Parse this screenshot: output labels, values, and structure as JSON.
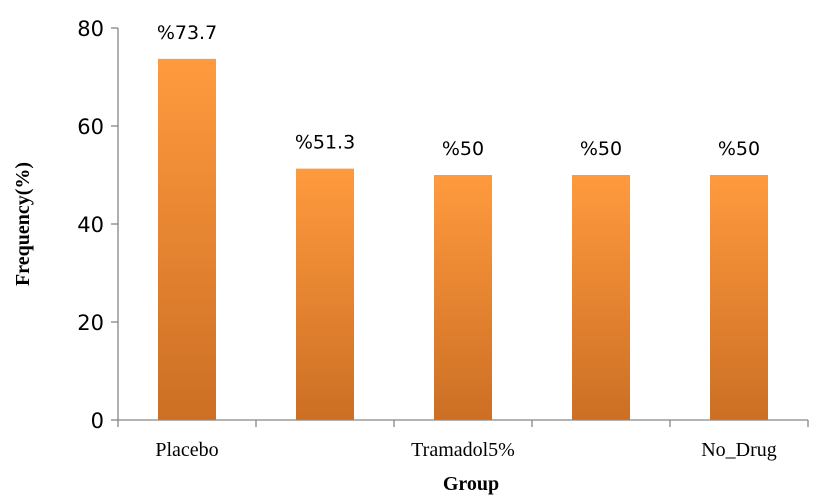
{
  "chart_data": {
    "type": "bar",
    "categories": [
      "Placebo",
      "",
      "Tramadol5%",
      "",
      "No_Drug"
    ],
    "values": [
      73.7,
      51.3,
      50,
      50,
      50
    ],
    "data_labels": [
      "%73.7",
      "%51.3",
      "%50",
      "%50",
      "%50"
    ],
    "xlabel": "Group",
    "ylabel": "Frequency(%)",
    "ylim": [
      0,
      80
    ],
    "yticks": [
      0,
      20,
      40,
      60,
      80
    ],
    "grid": false,
    "legend": "none",
    "colors": {
      "bar_top": "#FF9A3E",
      "bar_bottom": "#CC6F24",
      "axis": "#868686"
    }
  }
}
